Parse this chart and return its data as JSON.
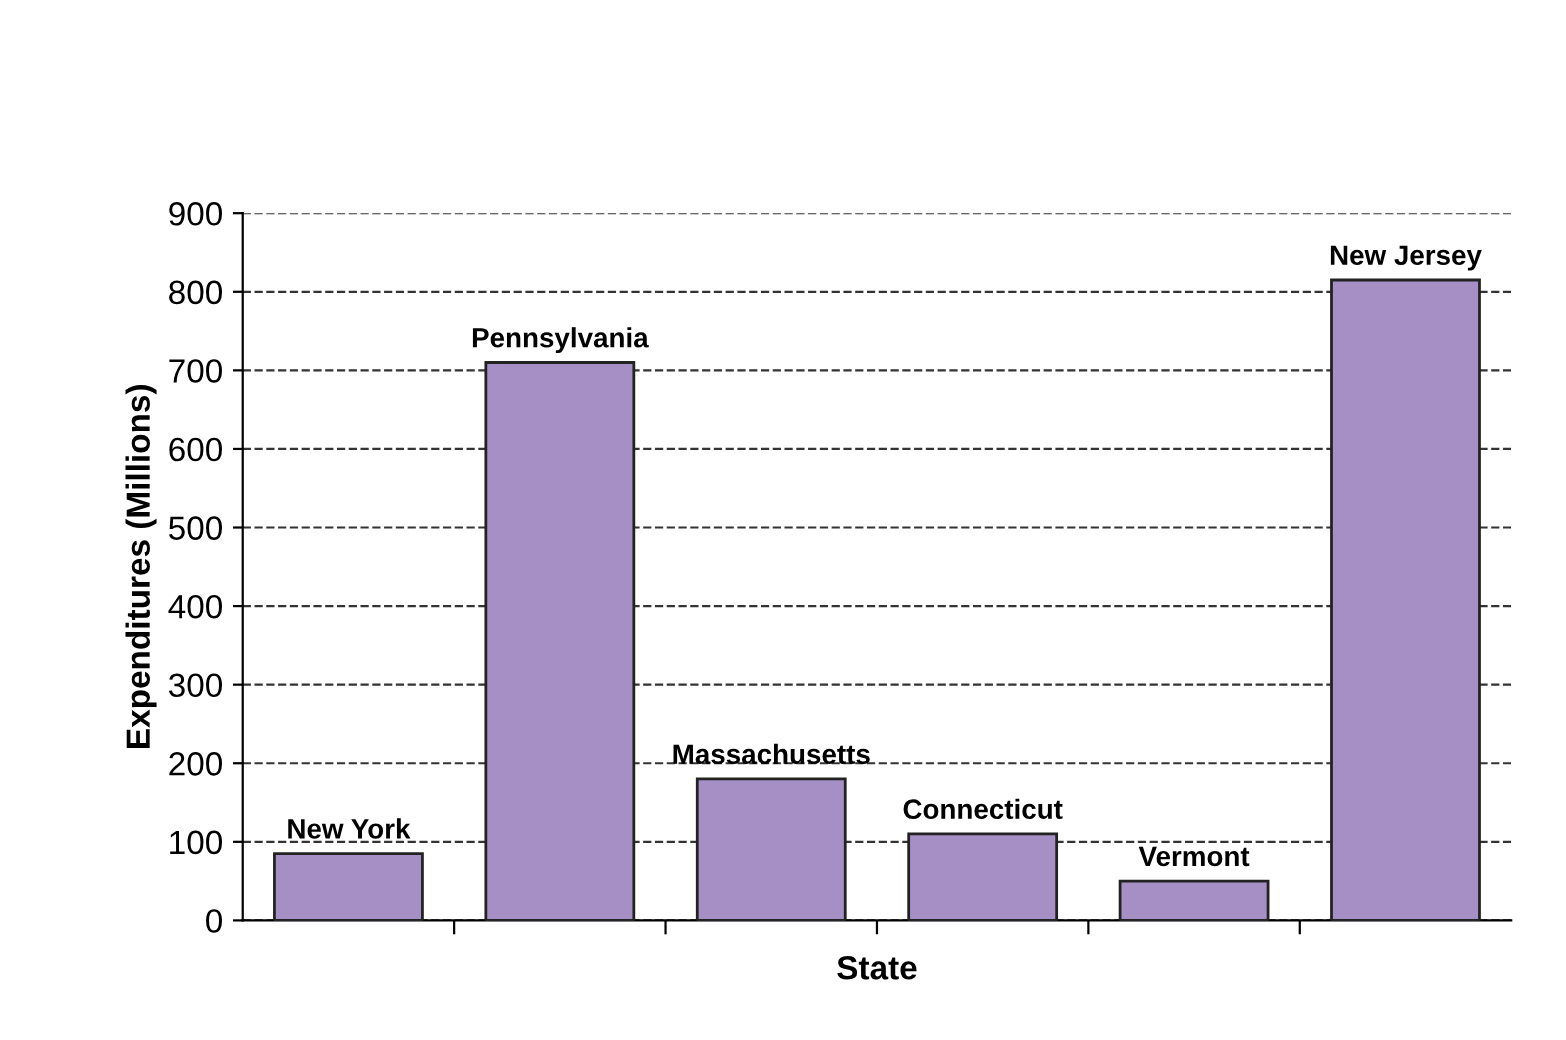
{
  "chart_data": {
    "type": "bar",
    "xlabel": "State",
    "ylabel": "Expenditures (Millions)",
    "categories": [
      "New York",
      "Pennsylvania",
      "Massachusetts",
      "Connecticut",
      "Vermont",
      "New Jersey"
    ],
    "values": [
      85,
      710,
      180,
      110,
      50,
      815
    ],
    "color": "#a58fc4",
    "ylim": [
      0,
      900
    ],
    "yticks": [
      0,
      100,
      200,
      300,
      400,
      500,
      600,
      700,
      800,
      900
    ],
    "grid": "y"
  }
}
